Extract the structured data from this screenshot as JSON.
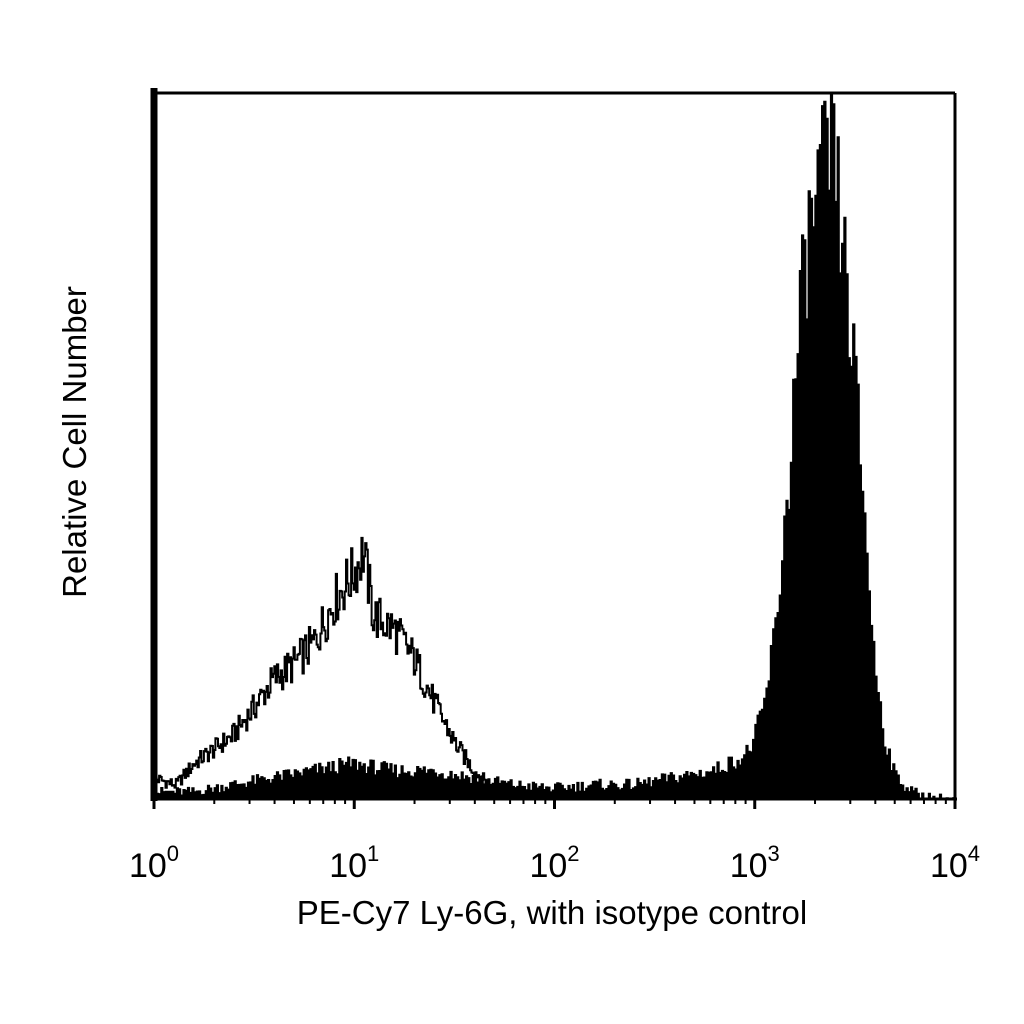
{
  "chart_data": {
    "type": "area",
    "title": "",
    "xlabel": "PE-Cy7 Ly-6G, with isotype control",
    "ylabel": "Relative Cell Number",
    "x_scale": "log",
    "xlim": [
      1,
      10000
    ],
    "ylim": [
      0,
      100
    ],
    "grid": false,
    "legend": "none",
    "x_ticks": [
      {
        "base": "10",
        "exp": "0"
      },
      {
        "base": "10",
        "exp": "1"
      },
      {
        "base": "10",
        "exp": "2"
      },
      {
        "base": "10",
        "exp": "3"
      },
      {
        "base": "10",
        "exp": "4"
      }
    ],
    "series": [
      {
        "style": "outline",
        "color": "#000000",
        "x": [
          1,
          1.3,
          1.6,
          2,
          2.5,
          3.2,
          4,
          5,
          6.3,
          8,
          10,
          11.2,
          12.6,
          16,
          20,
          25,
          32,
          40,
          50,
          63,
          79,
          100,
          200
        ],
        "y": [
          3,
          2,
          5,
          7,
          9,
          13,
          17,
          19,
          22,
          28,
          32,
          35,
          26,
          24,
          20,
          14,
          8,
          4,
          1.5,
          1,
          0.5,
          0.3,
          0
        ]
      },
      {
        "style": "filled",
        "color": "#000000",
        "x": [
          1,
          1.6,
          2.5,
          4,
          6.3,
          10,
          16,
          25,
          40,
          63,
          100,
          160,
          250,
          400,
          630,
          900,
          1000,
          1150,
          1300,
          1500,
          1700,
          1900,
          2100,
          2300,
          2500,
          2800,
          3200,
          3600,
          4000,
          4500,
          5000,
          5600,
          6300,
          7000,
          8000,
          10000
        ],
        "y": [
          1,
          1,
          2,
          3,
          4,
          5,
          4,
          4,
          3,
          2,
          1.5,
          2,
          2,
          3,
          4,
          6,
          8,
          14,
          25,
          45,
          68,
          80,
          86,
          90,
          91,
          78,
          60,
          40,
          20,
          9,
          4,
          2,
          1,
          0.5,
          0.2,
          0
        ]
      }
    ]
  }
}
